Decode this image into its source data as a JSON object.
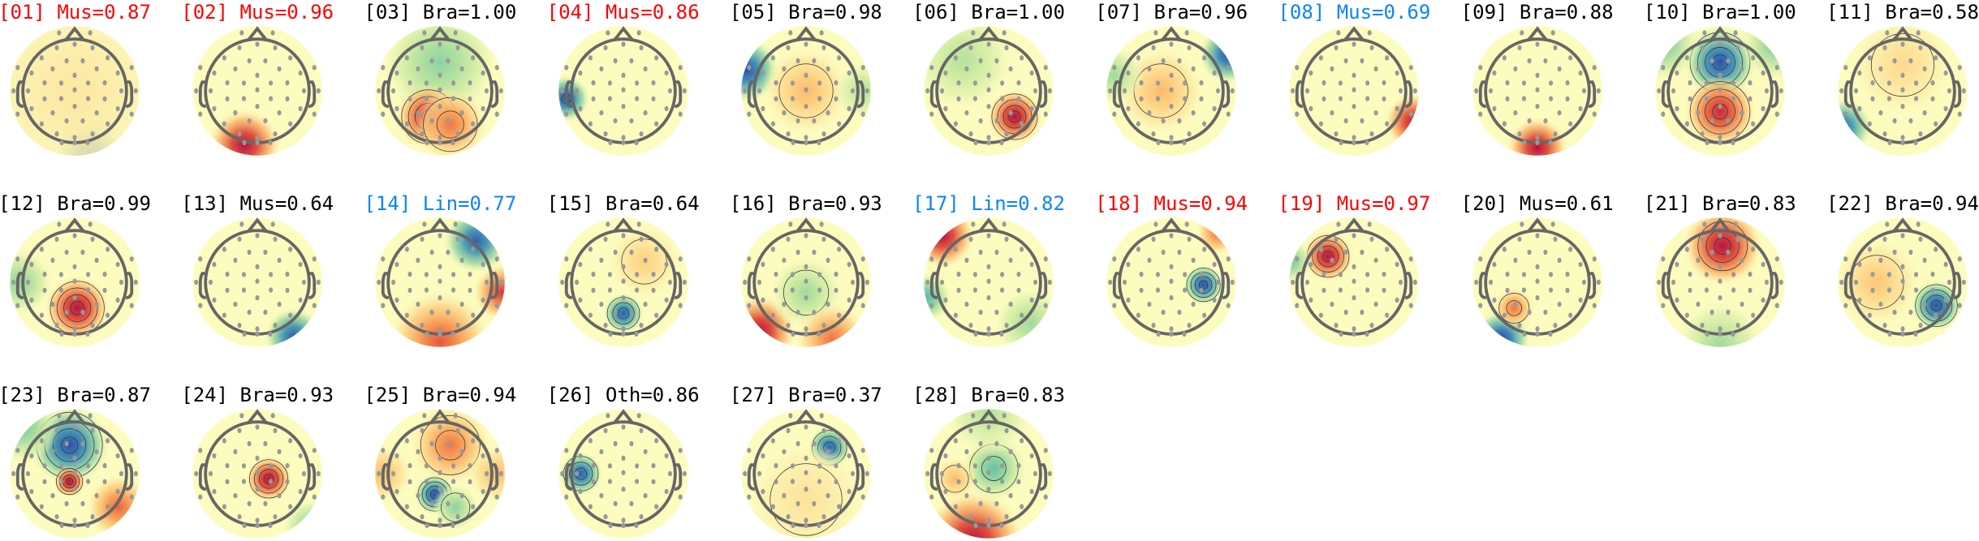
{
  "chart_data": {
    "type": "heatmap",
    "colormap": "spectral (blue negative, yellow zero, red positive)",
    "label_colors": {
      "red": "#ff0000",
      "blue": "#0a84ff",
      "black": "#000000"
    },
    "components": [
      {
        "text": "[01] Mus=0.87",
        "id": "01",
        "class": "Mus",
        "score": 0.87,
        "color": "red"
      },
      {
        "text": "[02] Mus=0.96",
        "id": "02",
        "class": "Mus",
        "score": 0.96,
        "color": "red"
      },
      {
        "text": "[03] Bra=1.00",
        "id": "03",
        "class": "Bra",
        "score": 1.0,
        "color": "black"
      },
      {
        "text": "[04] Mus=0.86",
        "id": "04",
        "class": "Mus",
        "score": 0.86,
        "color": "red"
      },
      {
        "text": "[05] Bra=0.98",
        "id": "05",
        "class": "Bra",
        "score": 0.98,
        "color": "black"
      },
      {
        "text": "[06] Bra=1.00",
        "id": "06",
        "class": "Bra",
        "score": 1.0,
        "color": "black"
      },
      {
        "text": "[07] Bra=0.96",
        "id": "07",
        "class": "Bra",
        "score": 0.96,
        "color": "black"
      },
      {
        "text": "[08] Mus=0.69",
        "id": "08",
        "class": "Mus",
        "score": 0.69,
        "color": "blue"
      },
      {
        "text": "[09] Bra=0.88",
        "id": "09",
        "class": "Bra",
        "score": 0.88,
        "color": "black"
      },
      {
        "text": "[10] Bra=1.00",
        "id": "10",
        "class": "Bra",
        "score": 1.0,
        "color": "black"
      },
      {
        "text": "[11] Bra=0.58",
        "id": "11",
        "class": "Bra",
        "score": 0.58,
        "color": "black"
      },
      {
        "text": "[12] Bra=0.99",
        "id": "12",
        "class": "Bra",
        "score": 0.99,
        "color": "black"
      },
      {
        "text": "[13] Mus=0.64",
        "id": "13",
        "class": "Mus",
        "score": 0.64,
        "color": "black"
      },
      {
        "text": "[14] Lin=0.77",
        "id": "14",
        "class": "Lin",
        "score": 0.77,
        "color": "blue"
      },
      {
        "text": "[15] Bra=0.64",
        "id": "15",
        "class": "Bra",
        "score": 0.64,
        "color": "black"
      },
      {
        "text": "[16] Bra=0.93",
        "id": "16",
        "class": "Bra",
        "score": 0.93,
        "color": "black"
      },
      {
        "text": "[17] Lin=0.82",
        "id": "17",
        "class": "Lin",
        "score": 0.82,
        "color": "blue"
      },
      {
        "text": "[18] Mus=0.94",
        "id": "18",
        "class": "Mus",
        "score": 0.94,
        "color": "red"
      },
      {
        "text": "[19] Mus=0.97",
        "id": "19",
        "class": "Mus",
        "score": 0.97,
        "color": "red"
      },
      {
        "text": "[20] Mus=0.61",
        "id": "20",
        "class": "Mus",
        "score": 0.61,
        "color": "black"
      },
      {
        "text": "[21] Bra=0.83",
        "id": "21",
        "class": "Bra",
        "score": 0.83,
        "color": "black"
      },
      {
        "text": "[22] Bra=0.94",
        "id": "22",
        "class": "Bra",
        "score": 0.94,
        "color": "black"
      },
      {
        "text": "[23] Bra=0.87",
        "id": "23",
        "class": "Bra",
        "score": 0.87,
        "color": "black"
      },
      {
        "text": "[24] Bra=0.93",
        "id": "24",
        "class": "Bra",
        "score": 0.93,
        "color": "black"
      },
      {
        "text": "[25] Bra=0.94",
        "id": "25",
        "class": "Bra",
        "score": 0.94,
        "color": "black"
      },
      {
        "text": "[26] Oth=0.86",
        "id": "26",
        "class": "Oth",
        "score": 0.86,
        "color": "black"
      },
      {
        "text": "[27] Bra=0.37",
        "id": "27",
        "class": "Bra",
        "score": 0.37,
        "color": "black"
      },
      {
        "text": "[28] Bra=0.83",
        "id": "28",
        "class": "Bra",
        "score": 0.83,
        "color": "black"
      }
    ]
  }
}
